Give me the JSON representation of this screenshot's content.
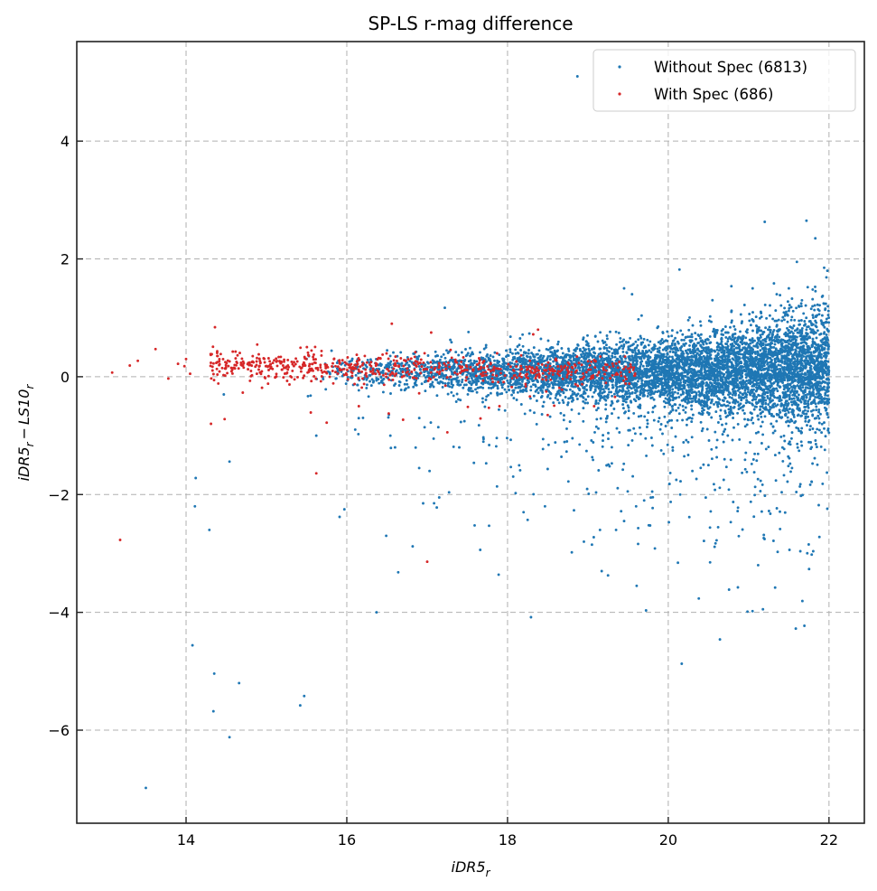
{
  "chart_data": {
    "type": "scatter",
    "title": "SP-LS r-mag difference",
    "xlabel": {
      "main": "iDR5",
      "sub": "r"
    },
    "ylabel": {
      "part1_main": "iDR5",
      "part1_sub": "r",
      "minus": "−",
      "part2_main": "LS10",
      "part2_sub": "r"
    },
    "xlim": [
      12.64,
      22.44
    ],
    "ylim": [
      -7.58,
      5.69
    ],
    "x_ticks": [
      14,
      16,
      18,
      20,
      22
    ],
    "x_tick_labels": [
      "14",
      "16",
      "18",
      "20",
      "22"
    ],
    "y_ticks": [
      4,
      2,
      0,
      -2,
      -4,
      -6
    ],
    "y_tick_labels": [
      "4",
      "2",
      "0",
      "−2",
      "−4",
      "−6"
    ],
    "grid": true,
    "tick_direction": "in",
    "legend": {
      "placement": "upper-right",
      "entries": [
        {
          "label": "Without Spec (6813)",
          "color": "#1f77b4"
        },
        {
          "label": "With Spec (686)",
          "color": "#d62728"
        }
      ]
    },
    "series": [
      {
        "name": "Without Spec",
        "count": 6813,
        "color": "#1f77b4",
        "outliers": [
          [
            18.87,
            5.1
          ],
          [
            21.2,
            2.63
          ],
          [
            21.72,
            2.65
          ],
          [
            21.83,
            2.35
          ],
          [
            20.14,
            1.82
          ],
          [
            21.94,
            1.85
          ],
          [
            21.98,
            1.8
          ],
          [
            21.6,
            1.95
          ],
          [
            19.45,
            1.5
          ],
          [
            19.55,
            1.4
          ],
          [
            17.22,
            1.17
          ],
          [
            21.05,
            1.5
          ],
          [
            21.35,
            1.4
          ],
          [
            21.5,
            1.5
          ],
          [
            20.55,
            1.3
          ],
          [
            13.5,
            -6.98
          ],
          [
            14.54,
            -6.12
          ],
          [
            14.34,
            -5.68
          ],
          [
            14.66,
            -5.2
          ],
          [
            15.42,
            -5.58
          ],
          [
            15.47,
            -5.42
          ],
          [
            14.35,
            -5.04
          ],
          [
            14.08,
            -4.56
          ],
          [
            16.37,
            -4.0
          ],
          [
            14.29,
            -2.6
          ],
          [
            14.12,
            -1.72
          ],
          [
            14.11,
            -2.2
          ],
          [
            14.54,
            -1.44
          ],
          [
            15.91,
            -2.38
          ],
          [
            15.97,
            -2.25
          ],
          [
            16.49,
            -2.7
          ],
          [
            16.64,
            -3.32
          ],
          [
            16.82,
            -2.88
          ],
          [
            17.89,
            -3.36
          ],
          [
            17.66,
            -2.94
          ],
          [
            17.77,
            -2.53
          ],
          [
            18.2,
            -2.3
          ],
          [
            18.25,
            -2.43
          ],
          [
            18.8,
            -2.98
          ],
          [
            18.95,
            -2.8
          ],
          [
            19.05,
            -2.85
          ],
          [
            19.35,
            -2.6
          ],
          [
            19.45,
            -2.45
          ],
          [
            19.15,
            -2.6
          ],
          [
            17.15,
            -2.05
          ],
          [
            17.03,
            -1.6
          ],
          [
            17.12,
            -2.22
          ],
          [
            16.9,
            -1.55
          ],
          [
            15.55,
            -0.32
          ],
          [
            14.47,
            -0.3
          ],
          [
            16.6,
            -1.2
          ],
          [
            15.62,
            -1.0
          ],
          [
            19.7,
            -2.1
          ],
          [
            19.6,
            -2.2
          ],
          [
            19.8,
            -1.95
          ],
          [
            20.1,
            -1.75
          ],
          [
            20.3,
            -1.6
          ],
          [
            20.5,
            -1.5
          ],
          [
            20.7,
            -1.4
          ],
          [
            17.4,
            -1.2
          ]
        ],
        "bulk_model": {
          "count": 6753,
          "x_weighting": "increasing toward faint end",
          "x_range": [
            15.4,
            22.0
          ],
          "y_center": 0.1,
          "core_sigma_bright": 0.12,
          "core_sigma_faint": 0.45,
          "negative_tail": true
        }
      },
      {
        "name": "With Spec",
        "count": 686,
        "color": "#d62728",
        "outliers": [
          [
            13.08,
            0.07
          ],
          [
            13.18,
            -2.77
          ],
          [
            13.3,
            0.19
          ],
          [
            13.4,
            0.27
          ],
          [
            13.62,
            0.47
          ],
          [
            13.78,
            -0.03
          ],
          [
            13.9,
            0.22
          ],
          [
            14.36,
            0.84
          ],
          [
            14.31,
            -0.8
          ],
          [
            14.48,
            -0.72
          ],
          [
            15.62,
            -1.64
          ],
          [
            15.75,
            -0.78
          ],
          [
            16.7,
            -0.73
          ],
          [
            17.0,
            -3.14
          ],
          [
            16.15,
            -0.5
          ],
          [
            16.56,
            0.9
          ],
          [
            18.32,
            0.72
          ],
          [
            18.38,
            0.8
          ],
          [
            17.05,
            0.75
          ],
          [
            14.0,
            0.3
          ],
          [
            14.05,
            0.05
          ],
          [
            13.98,
            0.18
          ],
          [
            16.9,
            -0.28
          ],
          [
            18.5,
            -0.65
          ],
          [
            17.9,
            -0.5
          ]
        ],
        "bulk_model": {
          "count": 661,
          "x_range": [
            14.0,
            19.7
          ],
          "x_weighting": "concentrated bright (14.5-18.5)",
          "y_center": 0.15,
          "core_sigma": 0.13
        }
      }
    ]
  }
}
